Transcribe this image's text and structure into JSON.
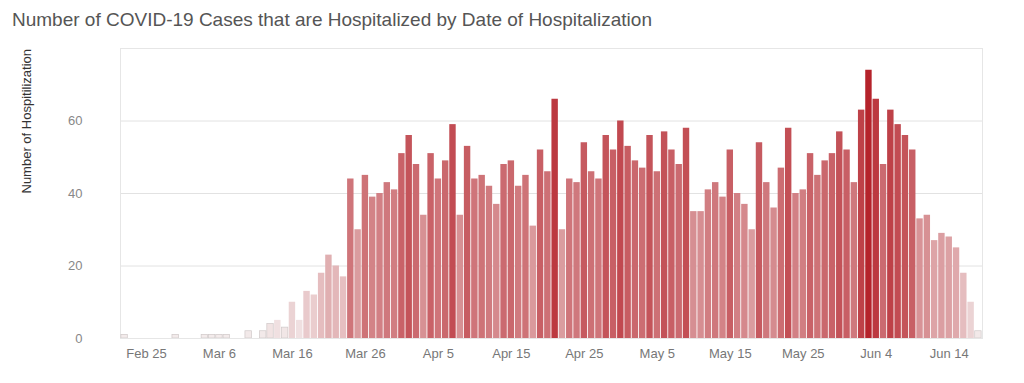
{
  "chart_data": {
    "type": "bar",
    "title": "Number of COVID-19 Cases that are Hospitalized by Date of Hospitalization",
    "y_label": "Number of Hospitilization",
    "categories": [
      null,
      null,
      null,
      "Feb 25",
      null,
      null,
      null,
      null,
      null,
      null,
      null,
      null,
      null,
      "Mar 6",
      null,
      null,
      null,
      null,
      null,
      null,
      null,
      null,
      null,
      "Mar 16",
      null,
      null,
      null,
      null,
      null,
      null,
      null,
      null,
      null,
      "Mar 26",
      null,
      null,
      null,
      null,
      null,
      null,
      null,
      null,
      null,
      "Apr 5",
      null,
      null,
      null,
      null,
      null,
      null,
      null,
      null,
      null,
      "Apr 15",
      null,
      null,
      null,
      null,
      null,
      null,
      null,
      null,
      null,
      "Apr 25",
      null,
      null,
      null,
      null,
      null,
      null,
      null,
      null,
      null,
      "May 5",
      null,
      null,
      null,
      null,
      null,
      null,
      null,
      null,
      null,
      "May 15",
      null,
      null,
      null,
      null,
      null,
      null,
      null,
      null,
      null,
      "May 25",
      null,
      null,
      null,
      null,
      null,
      null,
      null,
      null,
      null,
      "Jun 4",
      null,
      null,
      null,
      null,
      null,
      null,
      null,
      null,
      null,
      "Jun 14",
      null,
      null,
      null,
      null
    ],
    "values": [
      1,
      0,
      0,
      0,
      0,
      0,
      0,
      1,
      0,
      0,
      0,
      1,
      1,
      1,
      1,
      0,
      0,
      2,
      0,
      2,
      4,
      5,
      3,
      10,
      5,
      13,
      12,
      18,
      23,
      20,
      17,
      44,
      30,
      45,
      39,
      40,
      43,
      41,
      51,
      56,
      48,
      34,
      51,
      44,
      49,
      59,
      34,
      53,
      44,
      45,
      42,
      37,
      48,
      49,
      42,
      45,
      31,
      52,
      46,
      66,
      30,
      44,
      43,
      54,
      46,
      44,
      56,
      52,
      60,
      53,
      49,
      47,
      56,
      46,
      57,
      52,
      48,
      58,
      35,
      35,
      41,
      43,
      39,
      52,
      40,
      37,
      30,
      54,
      43,
      36,
      47,
      58,
      40,
      41,
      51,
      45,
      49,
      51,
      57,
      52,
      43,
      63,
      74,
      66,
      48,
      63,
      59,
      56,
      52,
      33,
      34,
      27,
      29,
      28,
      25,
      18,
      10,
      2
    ],
    "color": "#b5232b",
    "ylim": [
      0,
      80
    ],
    "yticks": [
      0,
      20,
      40,
      60
    ],
    "grid": true
  }
}
